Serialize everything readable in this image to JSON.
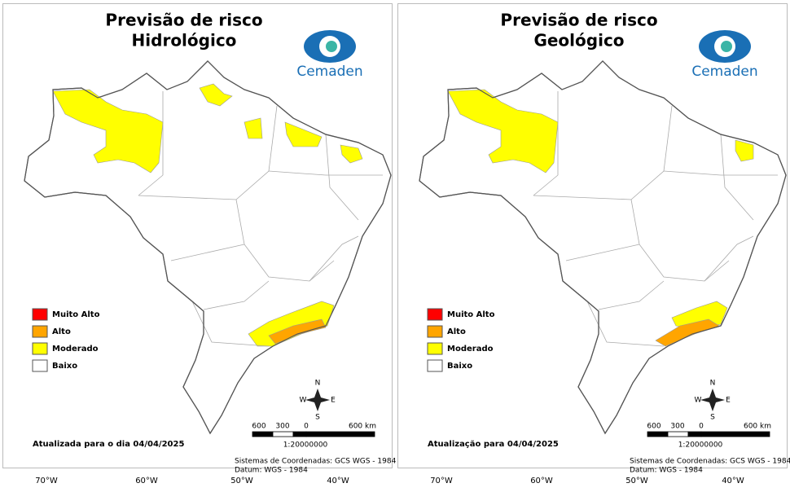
{
  "panels": [
    {
      "title": [
        "Previsão de risco",
        "Hidrológico"
      ],
      "logo": "Cemaden",
      "legend": [
        {
          "label": "Muito Alto",
          "color": "#ff0000"
        },
        {
          "label": "Alto",
          "color": "#ffa500"
        },
        {
          "label": "Moderado",
          "color": "#ffff00"
        },
        {
          "label": "Baixo",
          "color": "#ffffff"
        }
      ],
      "compass": [
        "N",
        "S",
        "W",
        "E"
      ],
      "scale_labels": [
        "600",
        "300",
        "0",
        "600 km"
      ],
      "scale_ratio": "1:20000000",
      "updated": "Atualizada para o dia 04/04/2025",
      "coordinates": "Sistemas de Coordenadas: GCS WGS - 1984",
      "datum": "Datum: WGS - 1984",
      "longitudes": [
        "70°W",
        "60°W",
        "50°W",
        "40°W"
      ]
    },
    {
      "title": [
        "Previsão de risco",
        "Geológico"
      ],
      "logo": "Cemaden",
      "legend": [
        {
          "label": "Muito Alto",
          "color": "#ff0000"
        },
        {
          "label": "Alto",
          "color": "#ffa500"
        },
        {
          "label": "Moderado",
          "color": "#ffff00"
        },
        {
          "label": "Baixo",
          "color": "#ffffff"
        }
      ],
      "compass": [
        "N",
        "S",
        "W",
        "E"
      ],
      "scale_labels": [
        "600",
        "300",
        "0",
        "600 km"
      ],
      "scale_ratio": "1:20000000",
      "updated": "Atualização para 04/04/2025",
      "coordinates": "Sistemas de Coordenadas: GCS WGS - 1984",
      "datum": "Datum: WGS - 1984",
      "longitudes": [
        "70°W",
        "60°W",
        "50°W",
        "40°W"
      ]
    }
  ]
}
